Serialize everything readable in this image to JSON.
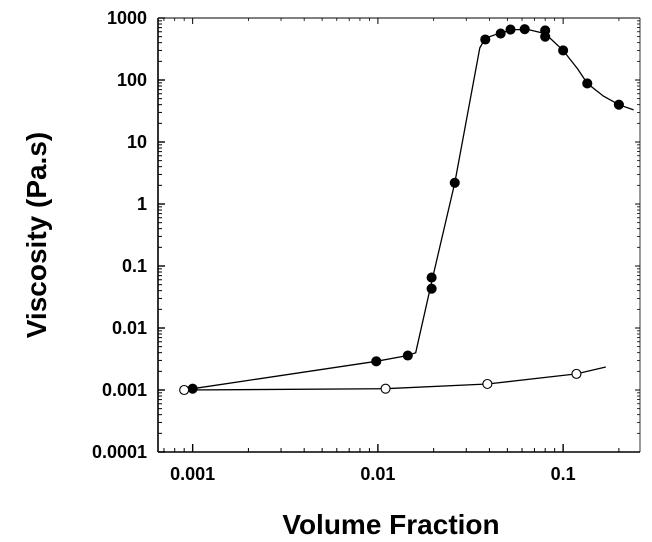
{
  "chart_data": {
    "type": "scatter",
    "title": "",
    "xlabel": "Volume Fraction",
    "ylabel": "Viscosity  (Pa.s)",
    "xscale": "log",
    "yscale": "log",
    "xlim": [
      0.00065,
      0.26
    ],
    "ylim": [
      0.0001,
      1000
    ],
    "grid": false,
    "legend": "none",
    "x_ticks": [
      {
        "value": 0.001,
        "label": "0.001"
      },
      {
        "value": 0.01,
        "label": "0.01"
      },
      {
        "value": 0.1,
        "label": "0.1"
      }
    ],
    "y_ticks": [
      {
        "value": 0.0001,
        "label": "0.0001"
      },
      {
        "value": 0.001,
        "label": "0.001"
      },
      {
        "value": 0.01,
        "label": "0.01"
      },
      {
        "value": 0.1,
        "label": "0.1"
      },
      {
        "value": 1,
        "label": "1"
      },
      {
        "value": 10,
        "label": "10"
      },
      {
        "value": 100,
        "label": "100"
      },
      {
        "value": 1000,
        "label": "1000"
      }
    ],
    "series": [
      {
        "marker": "filled-circle",
        "color": "#000000",
        "points": [
          {
            "x": 0.001,
            "y": 0.00105
          },
          {
            "x": 0.0098,
            "y": 0.0029
          },
          {
            "x": 0.0145,
            "y": 0.0036
          },
          {
            "x": 0.0195,
            "y": 0.065
          },
          {
            "x": 0.0195,
            "y": 0.043
          },
          {
            "x": 0.026,
            "y": 2.2
          },
          {
            "x": 0.038,
            "y": 450
          },
          {
            "x": 0.046,
            "y": 560
          },
          {
            "x": 0.052,
            "y": 650
          },
          {
            "x": 0.062,
            "y": 660
          },
          {
            "x": 0.08,
            "y": 630
          },
          {
            "x": 0.08,
            "y": 500
          },
          {
            "x": 0.1,
            "y": 300
          },
          {
            "x": 0.135,
            "y": 88
          },
          {
            "x": 0.2,
            "y": 40
          }
        ],
        "curve": [
          {
            "x": 0.001,
            "y": 0.00105
          },
          {
            "x": 0.0098,
            "y": 0.0029
          },
          {
            "x": 0.0145,
            "y": 0.0036
          },
          {
            "x": 0.016,
            "y": 0.004
          },
          {
            "x": 0.0195,
            "y": 0.055
          },
          {
            "x": 0.026,
            "y": 2.2
          },
          {
            "x": 0.0355,
            "y": 330
          },
          {
            "x": 0.038,
            "y": 470
          },
          {
            "x": 0.046,
            "y": 580
          },
          {
            "x": 0.055,
            "y": 650
          },
          {
            "x": 0.065,
            "y": 650
          },
          {
            "x": 0.08,
            "y": 560
          },
          {
            "x": 0.1,
            "y": 300
          },
          {
            "x": 0.12,
            "y": 150
          },
          {
            "x": 0.135,
            "y": 88
          },
          {
            "x": 0.165,
            "y": 55
          },
          {
            "x": 0.2,
            "y": 40
          },
          {
            "x": 0.24,
            "y": 33
          }
        ]
      },
      {
        "marker": "open-circle",
        "color": "#000000",
        "points": [
          {
            "x": 0.0009,
            "y": 0.001
          },
          {
            "x": 0.011,
            "y": 0.00105
          },
          {
            "x": 0.039,
            "y": 0.00125
          },
          {
            "x": 0.118,
            "y": 0.00182
          }
        ],
        "curve": [
          {
            "x": 0.0009,
            "y": 0.001
          },
          {
            "x": 0.011,
            "y": 0.00105
          },
          {
            "x": 0.039,
            "y": 0.00125
          },
          {
            "x": 0.118,
            "y": 0.00182
          },
          {
            "x": 0.17,
            "y": 0.00235
          }
        ]
      }
    ]
  }
}
